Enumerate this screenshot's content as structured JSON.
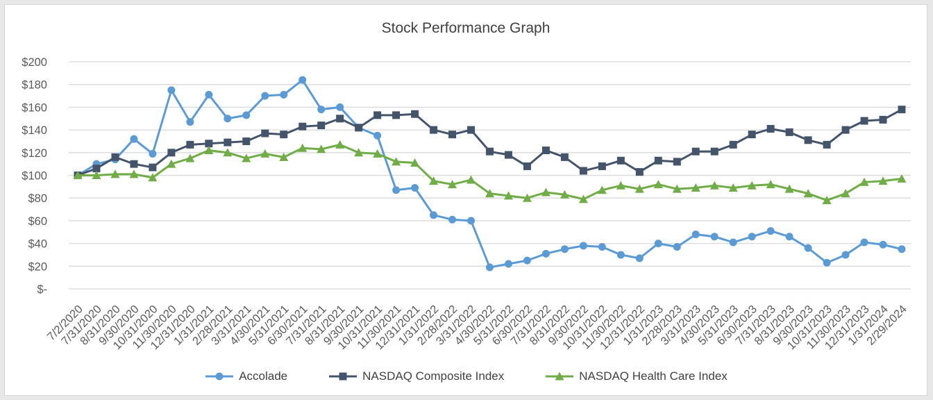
{
  "chart_data": {
    "type": "line",
    "title": "Stock Performance Graph",
    "xlabel": "",
    "ylabel": "",
    "ylim": [
      0,
      200
    ],
    "y_ticks": [
      0,
      20,
      40,
      60,
      80,
      100,
      120,
      140,
      160,
      180,
      200
    ],
    "y_tick_labels": [
      "$-",
      "$20",
      "$40",
      "$60",
      "$80",
      "$100",
      "$120",
      "$140",
      "$160",
      "$180",
      "$200"
    ],
    "categories": [
      "7/2/2020",
      "7/31/2020",
      "8/31/2020",
      "9/30/2020",
      "10/31/2020",
      "11/30/2020",
      "12/31/2020",
      "1/31/2021",
      "2/28/2021",
      "3/31/2021",
      "4/30/2021",
      "5/31/2021",
      "6/30/2021",
      "7/31/2021",
      "8/31/2021",
      "9/30/2021",
      "10/31/2021",
      "11/30/2021",
      "12/31/2021",
      "1/31/2022",
      "2/28/2022",
      "3/31/2022",
      "4/30/2022",
      "5/31/2022",
      "6/30/2022",
      "7/31/2022",
      "8/31/2022",
      "9/30/2022",
      "10/31/2022",
      "11/30/2022",
      "12/31/2022",
      "1/31/2023",
      "2/28/2023",
      "3/31/2023",
      "4/30/2023",
      "5/31/2023",
      "6/30/2023",
      "7/31/2023",
      "8/31/2023",
      "9/30/2023",
      "10/31/2023",
      "11/30/2023",
      "12/31/2023",
      "1/31/2024",
      "2/29/2024"
    ],
    "series": [
      {
        "name": "Accolade",
        "color": "#5b9bd5",
        "marker": "circle",
        "values": [
          100,
          110,
          114,
          132,
          119,
          175,
          147,
          171,
          150,
          153,
          170,
          171,
          184,
          158,
          160,
          142,
          135,
          87,
          89,
          65,
          61,
          60,
          19,
          22,
          25,
          31,
          35,
          38,
          37,
          30,
          27,
          40,
          37,
          48,
          46,
          41,
          46,
          51,
          46,
          36,
          23,
          30,
          41,
          39,
          35
        ]
      },
      {
        "name": "NASDAQ Composite Index",
        "color": "#44546a",
        "marker": "square",
        "values": [
          100,
          106,
          116,
          110,
          107,
          120,
          127,
          128,
          129,
          130,
          137,
          136,
          143,
          144,
          150,
          142,
          153,
          153,
          154,
          140,
          136,
          140,
          121,
          118,
          108,
          122,
          116,
          104,
          108,
          113,
          103,
          113,
          112,
          121,
          121,
          127,
          136,
          141,
          138,
          131,
          127,
          140,
          148,
          149,
          158
        ]
      },
      {
        "name": "NASDAQ Health Care Index",
        "color": "#70ad47",
        "marker": "triangle",
        "values": [
          100,
          100,
          101,
          101,
          98,
          110,
          115,
          122,
          120,
          115,
          119,
          116,
          124,
          123,
          127,
          120,
          119,
          112,
          111,
          95,
          92,
          96,
          84,
          82,
          80,
          85,
          83,
          79,
          87,
          91,
          88,
          92,
          88,
          89,
          91,
          89,
          91,
          92,
          88,
          84,
          78,
          84,
          94,
          95,
          97
        ]
      }
    ],
    "legend_position": "bottom",
    "grid": true
  }
}
